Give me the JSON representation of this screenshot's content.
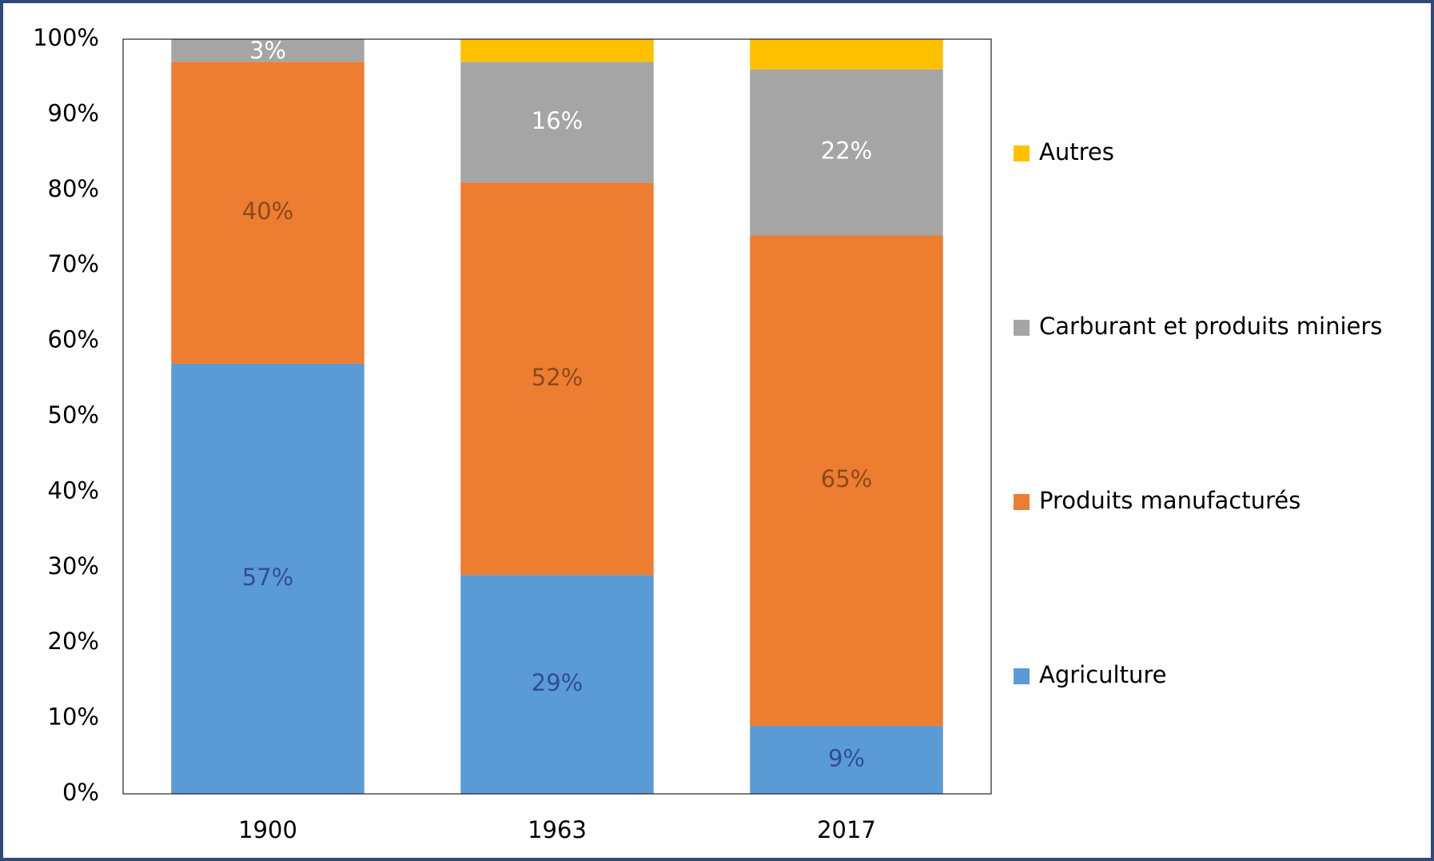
{
  "chart_data": {
    "type": "stacked_bar",
    "categories": [
      "1900",
      "1963",
      "2017"
    ],
    "series": [
      {
        "name": "Agriculture",
        "color": "#5b9bd5",
        "label_color": "#2f4f8f",
        "values": [
          57,
          29,
          9
        ],
        "value_labels": [
          "57%",
          "29%",
          "9%"
        ]
      },
      {
        "name": "Produits manufacturés",
        "color": "#ed7d31",
        "label_color": "#8a4a1c",
        "values": [
          40,
          52,
          65
        ],
        "value_labels": [
          "40%",
          "52%",
          "65%"
        ]
      },
      {
        "name": "Carburant et produits miniers",
        "color": "#a5a5a5",
        "label_color": "#ffffff",
        "values": [
          3,
          16,
          22
        ],
        "value_labels": [
          "3%",
          "16%",
          "22%"
        ]
      },
      {
        "name": "Autres",
        "color": "#ffc000",
        "values": [
          0,
          3,
          4
        ]
      }
    ],
    "ylim": [
      0,
      100
    ],
    "yticks": [
      {
        "value": 0,
        "label": "0%"
      },
      {
        "value": 10,
        "label": "10%"
      },
      {
        "value": 20,
        "label": "20%"
      },
      {
        "value": 30,
        "label": "30%"
      },
      {
        "value": 40,
        "label": "40%"
      },
      {
        "value": 50,
        "label": "50%"
      },
      {
        "value": 60,
        "label": "60%"
      },
      {
        "value": 70,
        "label": "70%"
      },
      {
        "value": 80,
        "label": "80%"
      },
      {
        "value": 90,
        "label": "90%"
      },
      {
        "value": 100,
        "label": "100%"
      }
    ],
    "grid": false,
    "legend": "right"
  }
}
